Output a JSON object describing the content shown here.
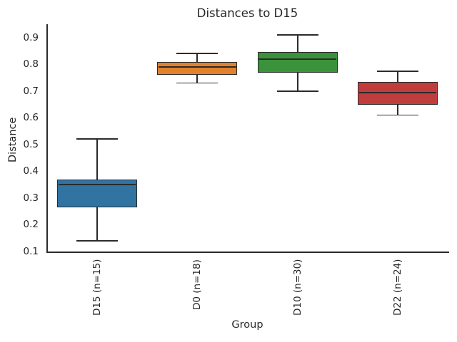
{
  "chart_data": {
    "type": "boxplot",
    "title": "Distances to D15",
    "xlabel": "Group",
    "ylabel": "Distance",
    "ylim": [
      0.1,
      0.95
    ],
    "yticks": [
      0.1,
      0.2,
      0.3,
      0.4,
      0.5,
      0.6,
      0.7,
      0.8,
      0.9
    ],
    "grid": false,
    "legend": false,
    "categories": [
      "D15 (n=15)",
      "D0 (n=18)",
      "D10 (n=30)",
      "D22 (n=24)"
    ],
    "series": [
      {
        "name": "D15 (n=15)",
        "n": 15,
        "whisker_low": 0.14,
        "q1": 0.265,
        "median": 0.35,
        "q3": 0.37,
        "whisker_high": 0.52,
        "color": "#3274a1"
      },
      {
        "name": "D0 (n=18)",
        "n": 18,
        "whisker_low": 0.73,
        "q1": 0.76,
        "median": 0.79,
        "q3": 0.81,
        "whisker_high": 0.84,
        "color": "#e1812c"
      },
      {
        "name": "D10 (n=30)",
        "n": 30,
        "whisker_low": 0.7,
        "q1": 0.77,
        "median": 0.82,
        "q3": 0.845,
        "whisker_high": 0.91,
        "color": "#3a923a"
      },
      {
        "name": "D22 (n=24)",
        "n": 24,
        "whisker_low": 0.61,
        "q1": 0.65,
        "median": 0.695,
        "q3": 0.735,
        "whisker_high": 0.775,
        "color": "#c03d3e"
      }
    ]
  },
  "colors": {
    "background": "#ffffff",
    "text": "#262626",
    "line": "#2b2b2b",
    "box_blue": "#3274a1",
    "box_orange": "#e1812c",
    "box_green": "#3a923a",
    "box_red": "#c03d3e"
  }
}
